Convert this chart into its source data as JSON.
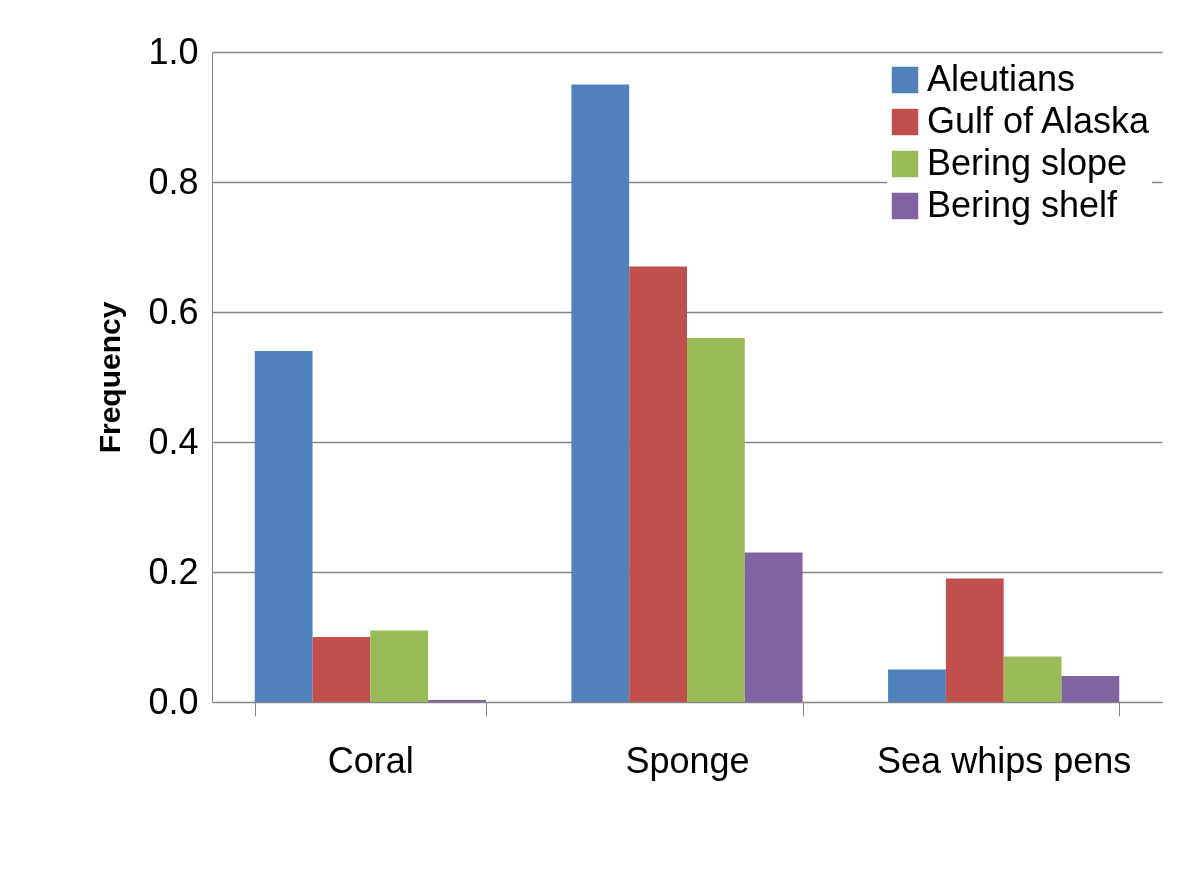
{
  "chart_data": {
    "type": "bar",
    "ylabel": "Frequency",
    "categories": [
      "Coral",
      "Sponge",
      "Sea whips pens"
    ],
    "series": [
      {
        "name": "Aleutians",
        "color": "#4f81bd",
        "values": [
          0.54,
          0.95,
          0.05
        ]
      },
      {
        "name": "Gulf of Alaska",
        "color": "#c0504d",
        "values": [
          0.1,
          0.67,
          0.19
        ]
      },
      {
        "name": "Bering slope",
        "color": "#9bbb59",
        "values": [
          0.11,
          0.56,
          0.07
        ]
      },
      {
        "name": "Bering shelf",
        "color": "#8064a2",
        "values": [
          0.003,
          0.23,
          0.04
        ]
      }
    ],
    "ylim": [
      0,
      1
    ],
    "yticks": [
      {
        "value": 0,
        "label": "0.0"
      },
      {
        "value": 0.2,
        "label": "0.2"
      },
      {
        "value": 0.4,
        "label": "0.4"
      },
      {
        "value": 0.6,
        "label": "0.6"
      },
      {
        "value": 0.8,
        "label": "0.8"
      },
      {
        "value": 1,
        "label": "1.0"
      }
    ],
    "grid": "y",
    "legend": "top right"
  }
}
